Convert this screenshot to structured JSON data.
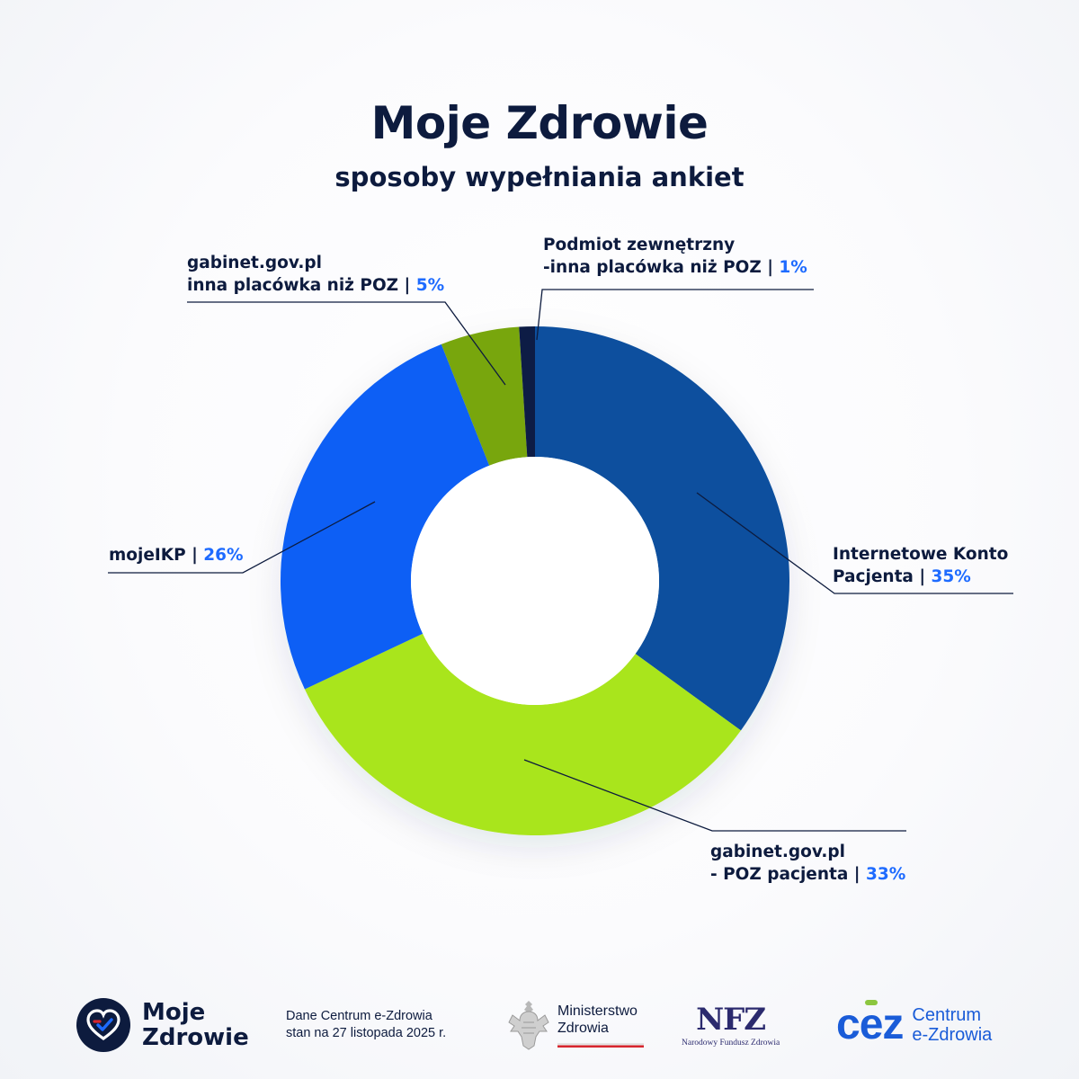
{
  "header": {
    "title": "Moje Zdrowie",
    "subtitle": "sposoby wypełniania ankiet"
  },
  "chart_data": {
    "type": "pie",
    "variant": "donut",
    "title": "Moje Zdrowie",
    "subtitle": "sposoby wypełniania ankiet",
    "unit": "%",
    "slices": [
      {
        "name": "Internetowe Konto Pacjenta",
        "value": 35,
        "color": "#0a4f9e"
      },
      {
        "name": "gabinet.gov.pl - POZ pacjenta",
        "value": 33,
        "color": "#a9e51a"
      },
      {
        "name": "mojeIKP",
        "value": 26,
        "color": "#0a5ff5"
      },
      {
        "name": "gabinet.gov.pl inna placówka niż POZ",
        "value": 5,
        "color": "#78a60f"
      },
      {
        "name": "Podmiot zewnętrzny -inna placówka niż POZ",
        "value": 1,
        "color": "#0b1f45"
      }
    ]
  },
  "labels": {
    "ikp": {
      "line1": "Internetowe Konto",
      "line2": "Pacjenta | ",
      "pct": "35%"
    },
    "poz": {
      "line1": "gabinet.gov.pl",
      "line2": "- POZ pacjenta | ",
      "pct": "33%"
    },
    "mojeikp": {
      "line1": "mojeIKP | ",
      "pct": "26%"
    },
    "inna": {
      "line1": "gabinet.gov.pl",
      "line2": "inna placówka niż POZ | ",
      "pct": "5%"
    },
    "podmiot": {
      "line1": "Podmiot zewnętrzny",
      "line2": "-inna placówka niż POZ | ",
      "pct": "1%"
    }
  },
  "footer": {
    "logo_line1": "Moje",
    "logo_line2": "Zdrowie",
    "source_line1": "Dane Centrum e-Zdrowia",
    "source_line2": "stan na 27 listopada 2025 r.",
    "ministry_line1": "Ministerstwo",
    "ministry_line2": "Zdrowia",
    "nfz_abbr": "NFZ",
    "nfz_name": "Narodowy Fundusz Zdrowia",
    "cez_abbr": "cez",
    "cez_line1": "Centrum",
    "cez_line2": "e-Zdrowia",
    "colors": {
      "navy": "#0d1b3e",
      "blue": "#1e6bff",
      "green": "#8cc63f",
      "red": "#d7262e",
      "cez_blue": "#1a5cd8"
    }
  }
}
